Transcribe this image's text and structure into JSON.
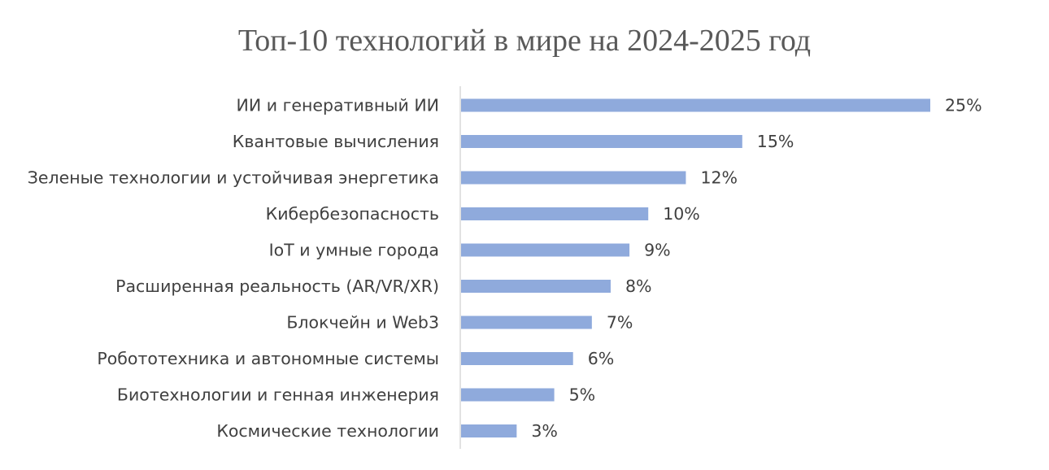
{
  "chart_data": {
    "type": "bar",
    "orientation": "horizontal",
    "title": "Топ-10 технологий в мире на 2024-2025 год",
    "xlabel": "",
    "ylabel": "",
    "categories": [
      "ИИ и генеративный ИИ",
      "Квантовые вычисления",
      "Зеленые технологии и устойчивая энергетика",
      "Кибербезопасность",
      "IoT и умные города",
      "Расширенная реальность (AR/VR/XR)",
      "Блокчейн и Web3",
      "Робототехника и автономные системы",
      "Биотехнологии и генная инженерия",
      "Космические технологии"
    ],
    "values": [
      25,
      15,
      12,
      10,
      9,
      8,
      7,
      6,
      5,
      3
    ],
    "value_labels": [
      "25%",
      "15%",
      "12%",
      "10%",
      "9%",
      "8%",
      "7%",
      "6%",
      "5%",
      "3%"
    ],
    "unit": "%",
    "xlim": [
      0,
      25
    ],
    "grid": false,
    "legend": "none",
    "colors": {
      "bar": "#8faadc",
      "axis": "#d9d9d9",
      "text": "#404040",
      "title": "#595959"
    }
  }
}
